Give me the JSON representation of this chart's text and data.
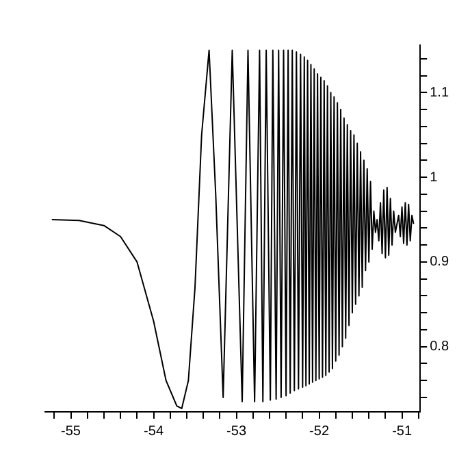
{
  "chart_data": {
    "type": "line",
    "marker": "none",
    "line_style": "solid",
    "grid": false,
    "legend": false,
    "x": [
      -55.23,
      -54.9,
      -54.6,
      -54.4,
      -54.2,
      -54.0,
      -53.85,
      -53.72,
      -53.66,
      -53.58,
      -53.5,
      -53.42,
      -53.33,
      -53.25,
      -53.16,
      -53.05,
      -52.93,
      -52.86,
      -52.78,
      -52.72,
      -52.68,
      -52.64,
      -52.59,
      -52.56,
      -52.52,
      -52.49,
      -52.46,
      -52.43,
      -52.4,
      -52.375,
      -52.35,
      -52.325,
      -52.3,
      -52.275,
      -52.25,
      -52.225,
      -52.2,
      -52.18,
      -52.16,
      -52.14,
      -52.12,
      -52.1,
      -52.08,
      -52.06,
      -52.04,
      -52.02,
      -52.0,
      -51.98,
      -51.96,
      -51.94,
      -51.92,
      -51.9,
      -51.88,
      -51.86,
      -51.84,
      -51.82,
      -51.8,
      -51.78,
      -51.76,
      -51.74,
      -51.72,
      -51.7,
      -51.68,
      -51.66,
      -51.64,
      -51.62,
      -51.6,
      -51.58,
      -51.56,
      -51.54,
      -51.52,
      -51.5,
      -51.48,
      -51.46,
      -51.44,
      -51.42,
      -51.4,
      -51.38,
      -51.36,
      -51.34,
      -51.32,
      -51.3,
      -51.28,
      -51.26,
      -51.24,
      -51.22,
      -51.2,
      -51.18,
      -51.16,
      -51.14,
      -51.12,
      -51.1,
      -51.08,
      -51.06,
      -51.04,
      -51.02,
      -51.0,
      -50.98,
      -50.96,
      -50.94,
      -50.92,
      -50.9,
      -50.88,
      -50.86
    ],
    "series": [
      {
        "color": "#000000",
        "values": [
          0.95,
          0.949,
          0.943,
          0.93,
          0.9,
          0.83,
          0.76,
          0.73,
          0.727,
          0.76,
          0.87,
          1.05,
          1.15,
          0.98,
          0.74,
          1.15,
          0.735,
          1.15,
          0.735,
          1.15,
          0.735,
          1.15,
          0.737,
          1.15,
          0.738,
          1.15,
          0.74,
          1.15,
          0.742,
          1.15,
          0.745,
          1.15,
          0.748,
          1.148,
          0.75,
          1.145,
          0.752,
          1.142,
          0.754,
          1.138,
          0.756,
          1.133,
          0.758,
          1.128,
          0.76,
          1.122,
          0.762,
          1.118,
          0.764,
          1.114,
          0.766,
          1.108,
          0.77,
          1.1,
          0.774,
          1.095,
          0.783,
          1.088,
          0.79,
          1.08,
          0.8,
          1.07,
          0.81,
          1.062,
          0.825,
          1.055,
          0.84,
          1.05,
          0.85,
          1.04,
          0.86,
          1.03,
          0.87,
          1.02,
          0.89,
          1.01,
          0.9,
          0.995,
          0.915,
          0.96,
          0.935,
          0.95,
          0.925,
          0.97,
          0.91,
          0.985,
          0.905,
          0.988,
          0.908,
          0.975,
          0.92,
          0.96,
          0.935,
          0.945,
          0.955,
          0.93,
          0.965,
          0.922,
          0.97,
          0.92,
          0.968,
          0.925,
          0.955,
          0.945
        ]
      }
    ],
    "xlim": [
      -55.31,
      -50.78
    ],
    "xticks": [
      {
        "value": -55.2,
        "label": null
      },
      -55,
      {
        "value": -54.8,
        "label": null
      },
      {
        "value": -54.6,
        "label": null
      },
      {
        "value": -54.4,
        "label": null
      },
      {
        "value": -54.2,
        "label": null
      },
      -54,
      {
        "value": -53.8,
        "label": null
      },
      {
        "value": -53.6,
        "label": null
      },
      {
        "value": -53.4,
        "label": null
      },
      {
        "value": -53.2,
        "label": null
      },
      -53,
      {
        "value": -52.8,
        "label": null
      },
      {
        "value": -52.6,
        "label": null
      },
      {
        "value": -52.4,
        "label": null
      },
      {
        "value": -52.2,
        "label": null
      },
      -52,
      {
        "value": -51.8,
        "label": null
      },
      {
        "value": -51.6,
        "label": null
      },
      {
        "value": -51.4,
        "label": null
      },
      {
        "value": -51.2,
        "label": null
      },
      -51,
      {
        "value": -50.8,
        "label": null
      }
    ],
    "ylim": [
      0.723,
      1.156
    ],
    "yticks": [
      {
        "value": 0.74,
        "label": null
      },
      {
        "value": 0.76,
        "label": null
      },
      {
        "value": 0.78,
        "label": null
      },
      0.8,
      {
        "value": 0.82,
        "label": null
      },
      {
        "value": 0.84,
        "label": null
      },
      {
        "value": 0.86,
        "label": null
      },
      {
        "value": 0.88,
        "label": null
      },
      0.9,
      {
        "value": 0.92,
        "label": null
      },
      {
        "value": 0.94,
        "label": null
      },
      {
        "value": 0.96,
        "label": null
      },
      {
        "value": 0.98,
        "label": null
      },
      1,
      {
        "value": 1.02,
        "label": null
      },
      {
        "value": 1.04,
        "label": null
      },
      {
        "value": 1.06,
        "label": null
      },
      {
        "value": 1.08,
        "label": null
      },
      1.1,
      {
        "value": 1.12,
        "label": null
      },
      {
        "value": 1.14,
        "label": null
      }
    ]
  }
}
